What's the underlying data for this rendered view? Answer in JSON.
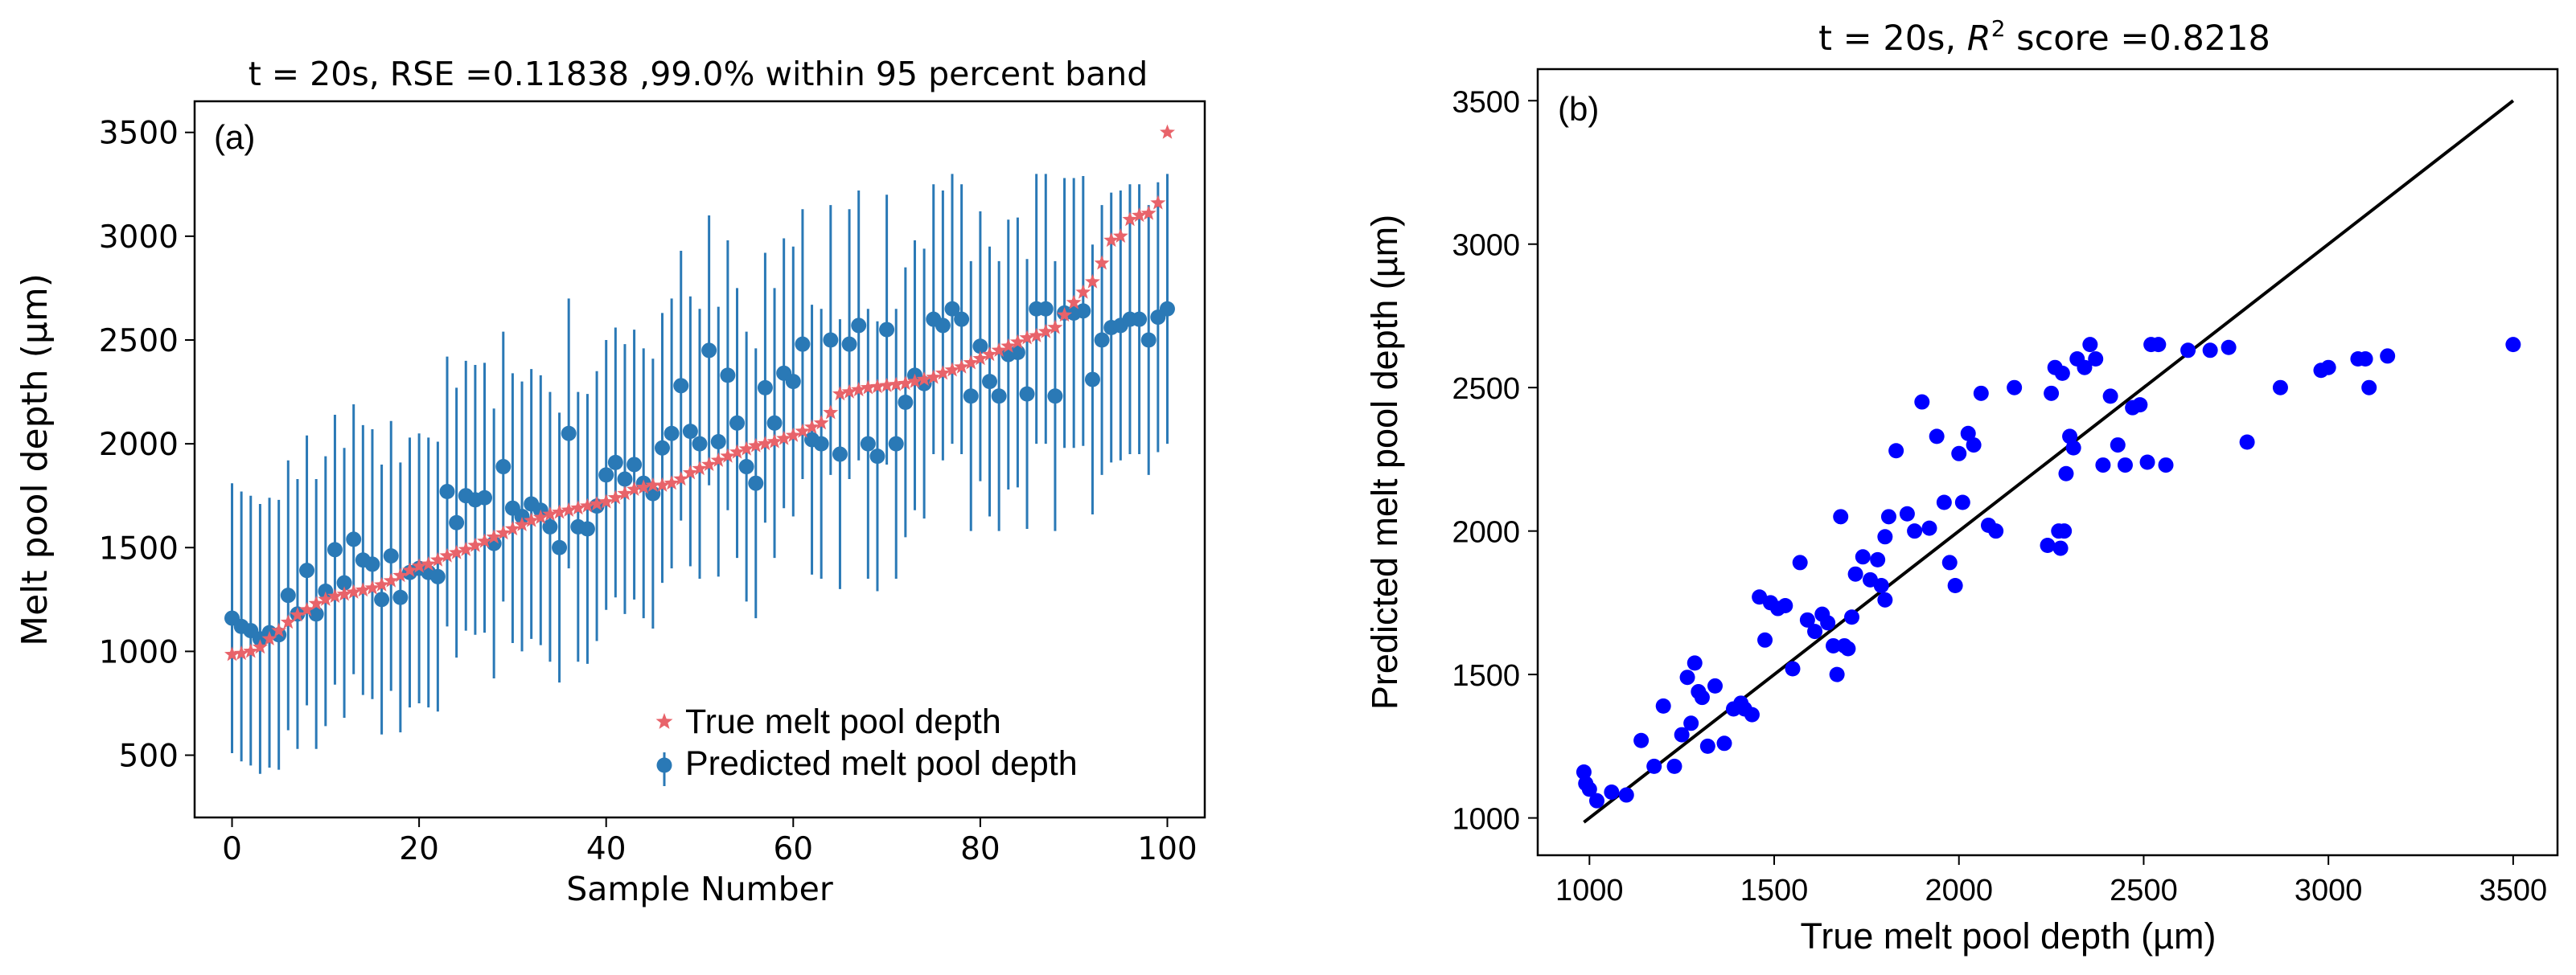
{
  "chart_data": [
    {
      "panel": "(a)",
      "type": "scatter",
      "title": "t = 20s, RSE =0.11838 ,99.0% within 95 percent band",
      "xlabel": "Sample Number",
      "ylabel": "Melt pool depth (µm)",
      "xlim": [
        -4,
        104
      ],
      "ylim": [
        200,
        3650
      ],
      "xticks": [
        0,
        20,
        40,
        60,
        80,
        100
      ],
      "yticks": [
        500,
        1000,
        1500,
        2000,
        2500,
        3000,
        3500
      ],
      "legend_position": "lower-right",
      "colors": {
        "true": "#e8636a",
        "pred": "#2a79b6"
      },
      "series": [
        {
          "name": "True melt pool depth",
          "marker": "star",
          "values": [
            985,
            990,
            1000,
            1020,
            1060,
            1100,
            1140,
            1175,
            1200,
            1230,
            1250,
            1265,
            1275,
            1285,
            1295,
            1305,
            1320,
            1340,
            1365,
            1390,
            1410,
            1420,
            1440,
            1460,
            1475,
            1490,
            1510,
            1530,
            1550,
            1570,
            1590,
            1610,
            1630,
            1645,
            1660,
            1670,
            1680,
            1690,
            1700,
            1710,
            1720,
            1740,
            1760,
            1780,
            1790,
            1800,
            1800,
            1810,
            1830,
            1860,
            1880,
            1900,
            1920,
            1940,
            1960,
            1975,
            1990,
            2000,
            2010,
            2025,
            2040,
            2060,
            2080,
            2100,
            2150,
            2240,
            2250,
            2260,
            2270,
            2275,
            2280,
            2285,
            2290,
            2300,
            2310,
            2320,
            2340,
            2355,
            2370,
            2390,
            2410,
            2430,
            2450,
            2470,
            2490,
            2510,
            2520,
            2540,
            2560,
            2620,
            2680,
            2730,
            2780,
            2870,
            2980,
            3000,
            3080,
            3100,
            3110,
            3160,
            3500
          ]
        },
        {
          "name": "Predicted melt pool depth",
          "marker": "circle-errorbar",
          "error_halfwidth": 650,
          "values": [
            1160,
            1120,
            1100,
            1060,
            1090,
            1080,
            1270,
            1180,
            1390,
            1180,
            1290,
            1490,
            1330,
            1540,
            1440,
            1420,
            1250,
            1460,
            1260,
            1380,
            1400,
            1380,
            1360,
            1770,
            1620,
            1750,
            1730,
            1740,
            1520,
            1890,
            1690,
            1650,
            1710,
            1680,
            1600,
            1500,
            2050,
            1600,
            1590,
            1700,
            1850,
            1910,
            1830,
            1900,
            1810,
            1760,
            1980,
            2050,
            2280,
            2060,
            2000,
            2450,
            2010,
            2330,
            2100,
            1890,
            1810,
            2270,
            2100,
            2340,
            2300,
            2480,
            2020,
            2000,
            2500,
            1950,
            2480,
            2570,
            2000,
            1940,
            2550,
            2000,
            2200,
            2330,
            2290,
            2600,
            2570,
            2650,
            2600,
            2230,
            2470,
            2300,
            2230,
            2430,
            2440,
            2240,
            2650,
            2650,
            2230,
            2630,
            2630,
            2640,
            2310,
            2500,
            2560,
            2570,
            2600,
            2600,
            2500,
            2610,
            2650
          ]
        }
      ]
    },
    {
      "panel": "(b)",
      "type": "scatter",
      "title_prefix": "t = 20s, ",
      "title_r": "R",
      "title_sup": "2",
      "title_suffix": " score =0.8218",
      "xlabel": "True melt pool depth (µm)",
      "ylabel": "Predicted melt pool depth (µm)",
      "xlim": [
        860,
        3620
      ],
      "ylim": [
        870,
        3610
      ],
      "xticks": [
        1000,
        1500,
        2000,
        2500,
        3000,
        3500
      ],
      "yticks": [
        1000,
        1500,
        2000,
        2500,
        3000,
        3500
      ],
      "identity_line": [
        985,
        3500
      ],
      "colors": {
        "points": "#0000ff",
        "line": "#000000"
      }
    }
  ]
}
